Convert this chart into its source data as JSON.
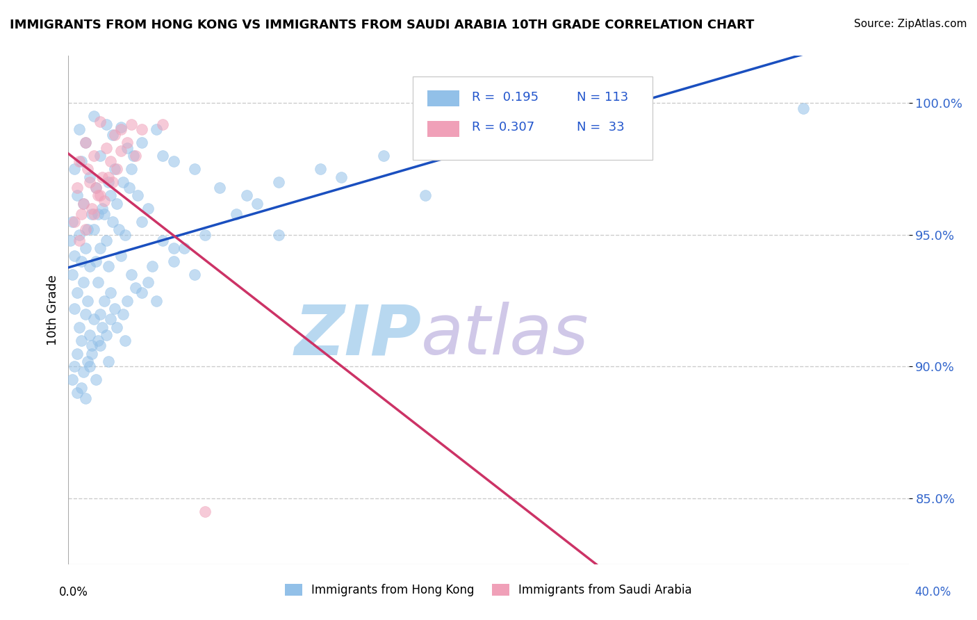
{
  "title": "IMMIGRANTS FROM HONG KONG VS IMMIGRANTS FROM SAUDI ARABIA 10TH GRADE CORRELATION CHART",
  "source": "Source: ZipAtlas.com",
  "ylabel_label": "10th Grade",
  "xlim": [
    0.0,
    40.0
  ],
  "ylim": [
    82.5,
    101.8
  ],
  "yticks": [
    85.0,
    90.0,
    95.0,
    100.0
  ],
  "ytick_labels": [
    "85.0%",
    "90.0%",
    "95.0%",
    "100.0%"
  ],
  "blue_color": "#92c0e8",
  "pink_color": "#f0a0b8",
  "blue_line_color": "#1a4fbf",
  "pink_line_color": "#cc3366",
  "watermark_zip": "ZIP",
  "watermark_atlas": "atlas",
  "watermark_color_zip": "#b8d8f0",
  "watermark_color_atlas": "#d0c8e8",
  "title_fontsize": 13,
  "source_fontsize": 11,
  "blue_scatter_x": [
    1.2,
    1.8,
    2.1,
    0.5,
    0.8,
    1.5,
    2.5,
    0.3,
    0.6,
    1.0,
    1.3,
    1.9,
    2.8,
    0.4,
    0.7,
    1.1,
    1.6,
    2.2,
    3.1,
    0.2,
    0.9,
    1.4,
    2.0,
    2.6,
    3.5,
    0.1,
    0.5,
    0.8,
    1.2,
    1.7,
    2.3,
    3.0,
    4.2,
    0.3,
    0.6,
    1.0,
    1.5,
    2.1,
    2.9,
    4.5,
    0.2,
    0.7,
    1.3,
    1.8,
    2.4,
    3.3,
    5.0,
    0.4,
    0.9,
    1.4,
    1.9,
    2.7,
    3.8,
    6.0,
    0.3,
    0.8,
    1.2,
    1.7,
    2.5,
    3.5,
    7.2,
    0.5,
    1.0,
    1.5,
    2.0,
    3.0,
    4.5,
    8.5,
    0.6,
    1.1,
    1.6,
    2.2,
    3.2,
    5.0,
    10.0,
    0.4,
    0.9,
    1.4,
    2.0,
    2.8,
    4.0,
    6.5,
    12.0,
    0.3,
    0.7,
    1.1,
    1.8,
    2.6,
    3.8,
    5.5,
    9.0,
    15.0,
    0.2,
    0.6,
    1.0,
    1.5,
    2.3,
    3.5,
    5.0,
    8.0,
    13.0,
    20.0,
    0.4,
    0.8,
    1.3,
    1.9,
    2.7,
    4.2,
    6.0,
    10.0,
    17.0,
    27.0,
    35.0
  ],
  "blue_scatter_y": [
    99.5,
    99.2,
    98.8,
    99.0,
    98.5,
    98.0,
    99.1,
    97.5,
    97.8,
    97.2,
    96.8,
    97.0,
    98.3,
    96.5,
    96.2,
    95.8,
    96.0,
    97.5,
    98.0,
    95.5,
    95.2,
    95.8,
    96.5,
    97.0,
    98.5,
    94.8,
    95.0,
    94.5,
    95.2,
    95.8,
    96.2,
    97.5,
    99.0,
    94.2,
    94.0,
    93.8,
    94.5,
    95.5,
    96.8,
    98.0,
    93.5,
    93.2,
    94.0,
    94.8,
    95.2,
    96.5,
    97.8,
    92.8,
    92.5,
    93.2,
    93.8,
    95.0,
    96.0,
    97.5,
    92.2,
    92.0,
    91.8,
    92.5,
    94.2,
    95.5,
    96.8,
    91.5,
    91.2,
    92.0,
    92.8,
    93.5,
    94.8,
    96.5,
    91.0,
    90.8,
    91.5,
    92.2,
    93.0,
    94.5,
    97.0,
    90.5,
    90.2,
    91.0,
    91.8,
    92.5,
    93.8,
    95.0,
    97.5,
    90.0,
    89.8,
    90.5,
    91.2,
    92.0,
    93.2,
    94.5,
    96.2,
    98.0,
    89.5,
    89.2,
    90.0,
    90.8,
    91.5,
    92.8,
    94.0,
    95.8,
    97.2,
    99.5,
    89.0,
    88.8,
    89.5,
    90.2,
    91.0,
    92.5,
    93.5,
    95.0,
    96.5,
    98.5,
    99.8
  ],
  "pink_scatter_x": [
    1.5,
    2.5,
    0.8,
    1.2,
    3.0,
    0.5,
    1.8,
    2.2,
    0.9,
    1.6,
    2.8,
    0.4,
    1.0,
    1.4,
    2.0,
    3.5,
    0.7,
    1.3,
    2.5,
    0.6,
    1.1,
    1.9,
    2.3,
    0.3,
    0.8,
    1.5,
    2.1,
    3.2,
    0.5,
    1.2,
    1.7,
    4.5,
    6.5
  ],
  "pink_scatter_y": [
    99.3,
    99.0,
    98.5,
    98.0,
    99.2,
    97.8,
    98.3,
    98.8,
    97.5,
    97.2,
    98.5,
    96.8,
    97.0,
    96.5,
    97.8,
    99.0,
    96.2,
    96.8,
    98.2,
    95.8,
    96.0,
    97.2,
    97.5,
    95.5,
    95.2,
    96.5,
    97.0,
    98.0,
    94.8,
    95.8,
    96.3,
    99.2,
    84.5
  ]
}
